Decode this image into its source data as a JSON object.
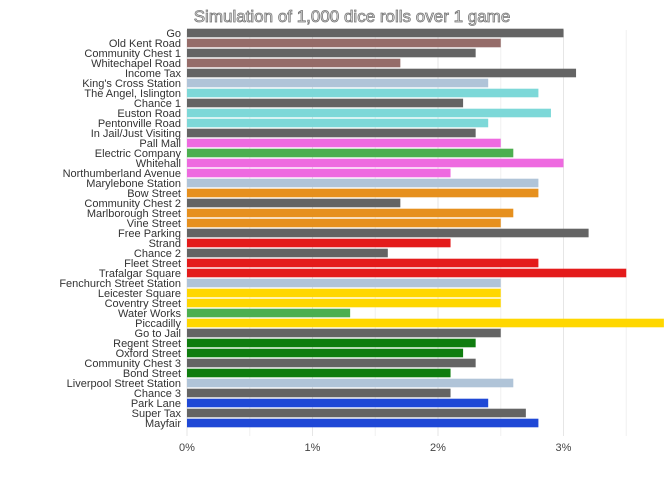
{
  "chart_data": {
    "type": "bar",
    "orientation": "horizontal",
    "title": "Simulation of 1,000 dice rolls over 1 game",
    "xlabel": "",
    "ylabel": "",
    "xlim": [
      0,
      3.5
    ],
    "x_ticks": [
      0,
      1,
      2,
      3
    ],
    "x_tick_labels": [
      "0%",
      "1%",
      "2%",
      "3%"
    ],
    "grid": true,
    "legend": "none",
    "categories": [
      "Go",
      "Old Kent Road",
      "Community Chest 1",
      "Whitechapel Road",
      "Income Tax",
      "King's Cross Station",
      "The Angel, Islington",
      "Chance 1",
      "Euston Road",
      "Pentonville Road",
      "In Jail/Just Visiting",
      "Pall Mall",
      "Electric Company",
      "Whitehall",
      "Northumberland Avenue",
      "Marylebone Station",
      "Bow Street",
      "Community Chest 2",
      "Marlborough Street",
      "Vine Street",
      "Free Parking",
      "Strand",
      "Chance 2",
      "Fleet Street",
      "Trafalgar Square",
      "Fenchurch Street Station",
      "Leicester Square",
      "Coventry Street",
      "Water Works",
      "Piccadilly",
      "Go to Jail",
      "Regent Street",
      "Oxford Street",
      "Community Chest 3",
      "Bond Street",
      "Liverpool Street Station",
      "Chance 3",
      "Park Lane",
      "Super Tax",
      "Mayfair"
    ],
    "values": [
      3.0,
      2.5,
      2.3,
      1.7,
      3.1,
      2.4,
      2.8,
      2.2,
      2.9,
      2.4,
      2.3,
      2.5,
      2.6,
      3.0,
      2.1,
      2.8,
      2.8,
      1.7,
      2.6,
      2.5,
      3.2,
      2.1,
      1.6,
      2.8,
      3.5,
      2.5,
      2.5,
      2.5,
      1.3,
      3.8,
      2.5,
      2.3,
      2.2,
      2.3,
      2.1,
      2.6,
      2.1,
      2.4,
      2.7,
      2.8
    ],
    "colors": [
      "#646464",
      "#956c69",
      "#646464",
      "#956c69",
      "#646464",
      "#b0c4d8",
      "#7dd8d8",
      "#646464",
      "#7dd8d8",
      "#7dd8d8",
      "#646464",
      "#ee6ae0",
      "#4caf50",
      "#ee6ae0",
      "#ee6ae0",
      "#b0c4d8",
      "#e6901e",
      "#646464",
      "#e6901e",
      "#e6901e",
      "#646464",
      "#e41b1b",
      "#646464",
      "#e41b1b",
      "#e41b1b",
      "#b0c4d8",
      "#ffd700",
      "#ffd700",
      "#4caf50",
      "#ffd700",
      "#646464",
      "#0f7d0f",
      "#0f7d0f",
      "#646464",
      "#0f7d0f",
      "#b0c4d8",
      "#646464",
      "#1f48d6",
      "#646464",
      "#1f48d6"
    ]
  }
}
